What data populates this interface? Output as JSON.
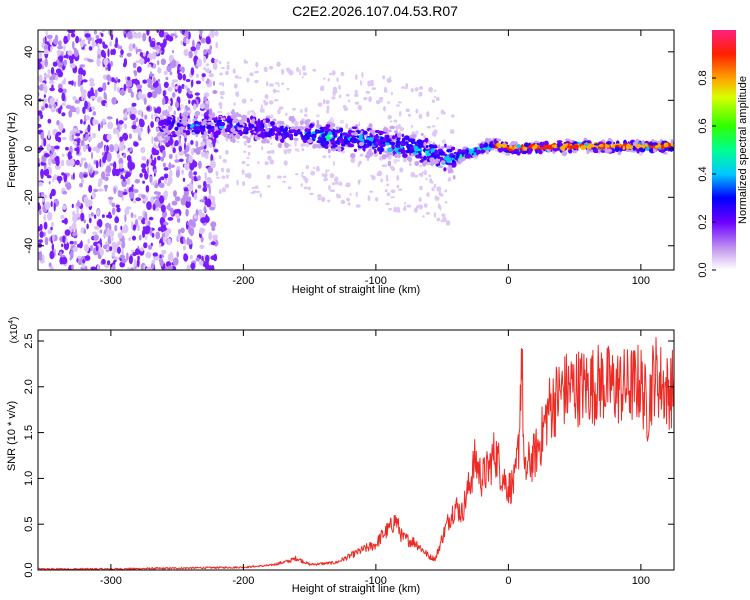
{
  "title": "C2E2.2026.107.04.53.R07",
  "chart_data": [
    {
      "type": "heatmap",
      "title": "C2E2.2026.107.04.53.R07",
      "xlabel": "Height of straight line (km)",
      "ylabel": "Frequency (Hz)",
      "xlim": [
        -355,
        125
      ],
      "ylim": [
        -50,
        49
      ],
      "xticks": [
        -300,
        -200,
        -100,
        0,
        100
      ],
      "yticks": [
        -40,
        -20,
        0,
        20,
        40
      ],
      "ridge": [
        {
          "x": -260,
          "y": 10
        },
        {
          "x": -200,
          "y": 9
        },
        {
          "x": -150,
          "y": 6
        },
        {
          "x": -100,
          "y": 3
        },
        {
          "x": -70,
          "y": 0
        },
        {
          "x": -45,
          "y": -4
        },
        {
          "x": -30,
          "y": -2
        },
        {
          "x": -10,
          "y": 2
        },
        {
          "x": 0,
          "y": 0
        },
        {
          "x": 50,
          "y": 1
        },
        {
          "x": 125,
          "y": 1
        }
      ],
      "colorbar": {
        "label": "Normalized spectral amplitude",
        "range": [
          0,
          1
        ],
        "ticks": [
          "0.0",
          "0.2",
          "0.4",
          "0.6",
          "0.8"
        ]
      }
    },
    {
      "type": "line",
      "xlabel": "Height of straight line (km)",
      "ylabel": "SNR (10 * v/v)",
      "ylabel_scale": "(x10^4)",
      "scale_base": "(x10",
      "scale_exp": "4",
      "xlim": [
        -355,
        125
      ],
      "ylim": [
        0,
        2.62
      ],
      "xticks": [
        -300,
        -200,
        -100,
        0,
        100
      ],
      "yticks": [
        "0.0",
        "0.5",
        "1.0",
        "1.5",
        "2.0",
        "2.5"
      ],
      "color": "#ee2a24",
      "series": [
        {
          "name": "SNR",
          "x": [
            -355,
            -300,
            -250,
            -200,
            -180,
            -165,
            -160,
            -150,
            -130,
            -120,
            -110,
            -100,
            -95,
            -90,
            -85,
            -80,
            -70,
            -60,
            -55,
            -50,
            -45,
            -40,
            -35,
            -30,
            -25,
            -20,
            -15,
            -10,
            -5,
            0,
            5,
            8,
            10,
            12,
            15,
            20,
            25,
            30,
            40,
            50,
            60,
            70,
            80,
            90,
            100,
            105,
            110,
            120,
            125
          ],
          "values": [
            0.01,
            0.01,
            0.02,
            0.03,
            0.05,
            0.1,
            0.13,
            0.06,
            0.08,
            0.15,
            0.22,
            0.28,
            0.38,
            0.45,
            0.55,
            0.35,
            0.3,
            0.15,
            0.12,
            0.35,
            0.55,
            0.7,
            0.62,
            0.9,
            1.2,
            1.0,
            1.1,
            1.3,
            1.05,
            0.9,
            0.95,
            1.4,
            2.45,
            1.0,
            1.15,
            1.25,
            1.45,
            1.75,
            1.95,
            2.0,
            2.0,
            2.05,
            2.0,
            2.0,
            2.05,
            1.75,
            2.15,
            1.95,
            2.0
          ]
        }
      ]
    }
  ]
}
